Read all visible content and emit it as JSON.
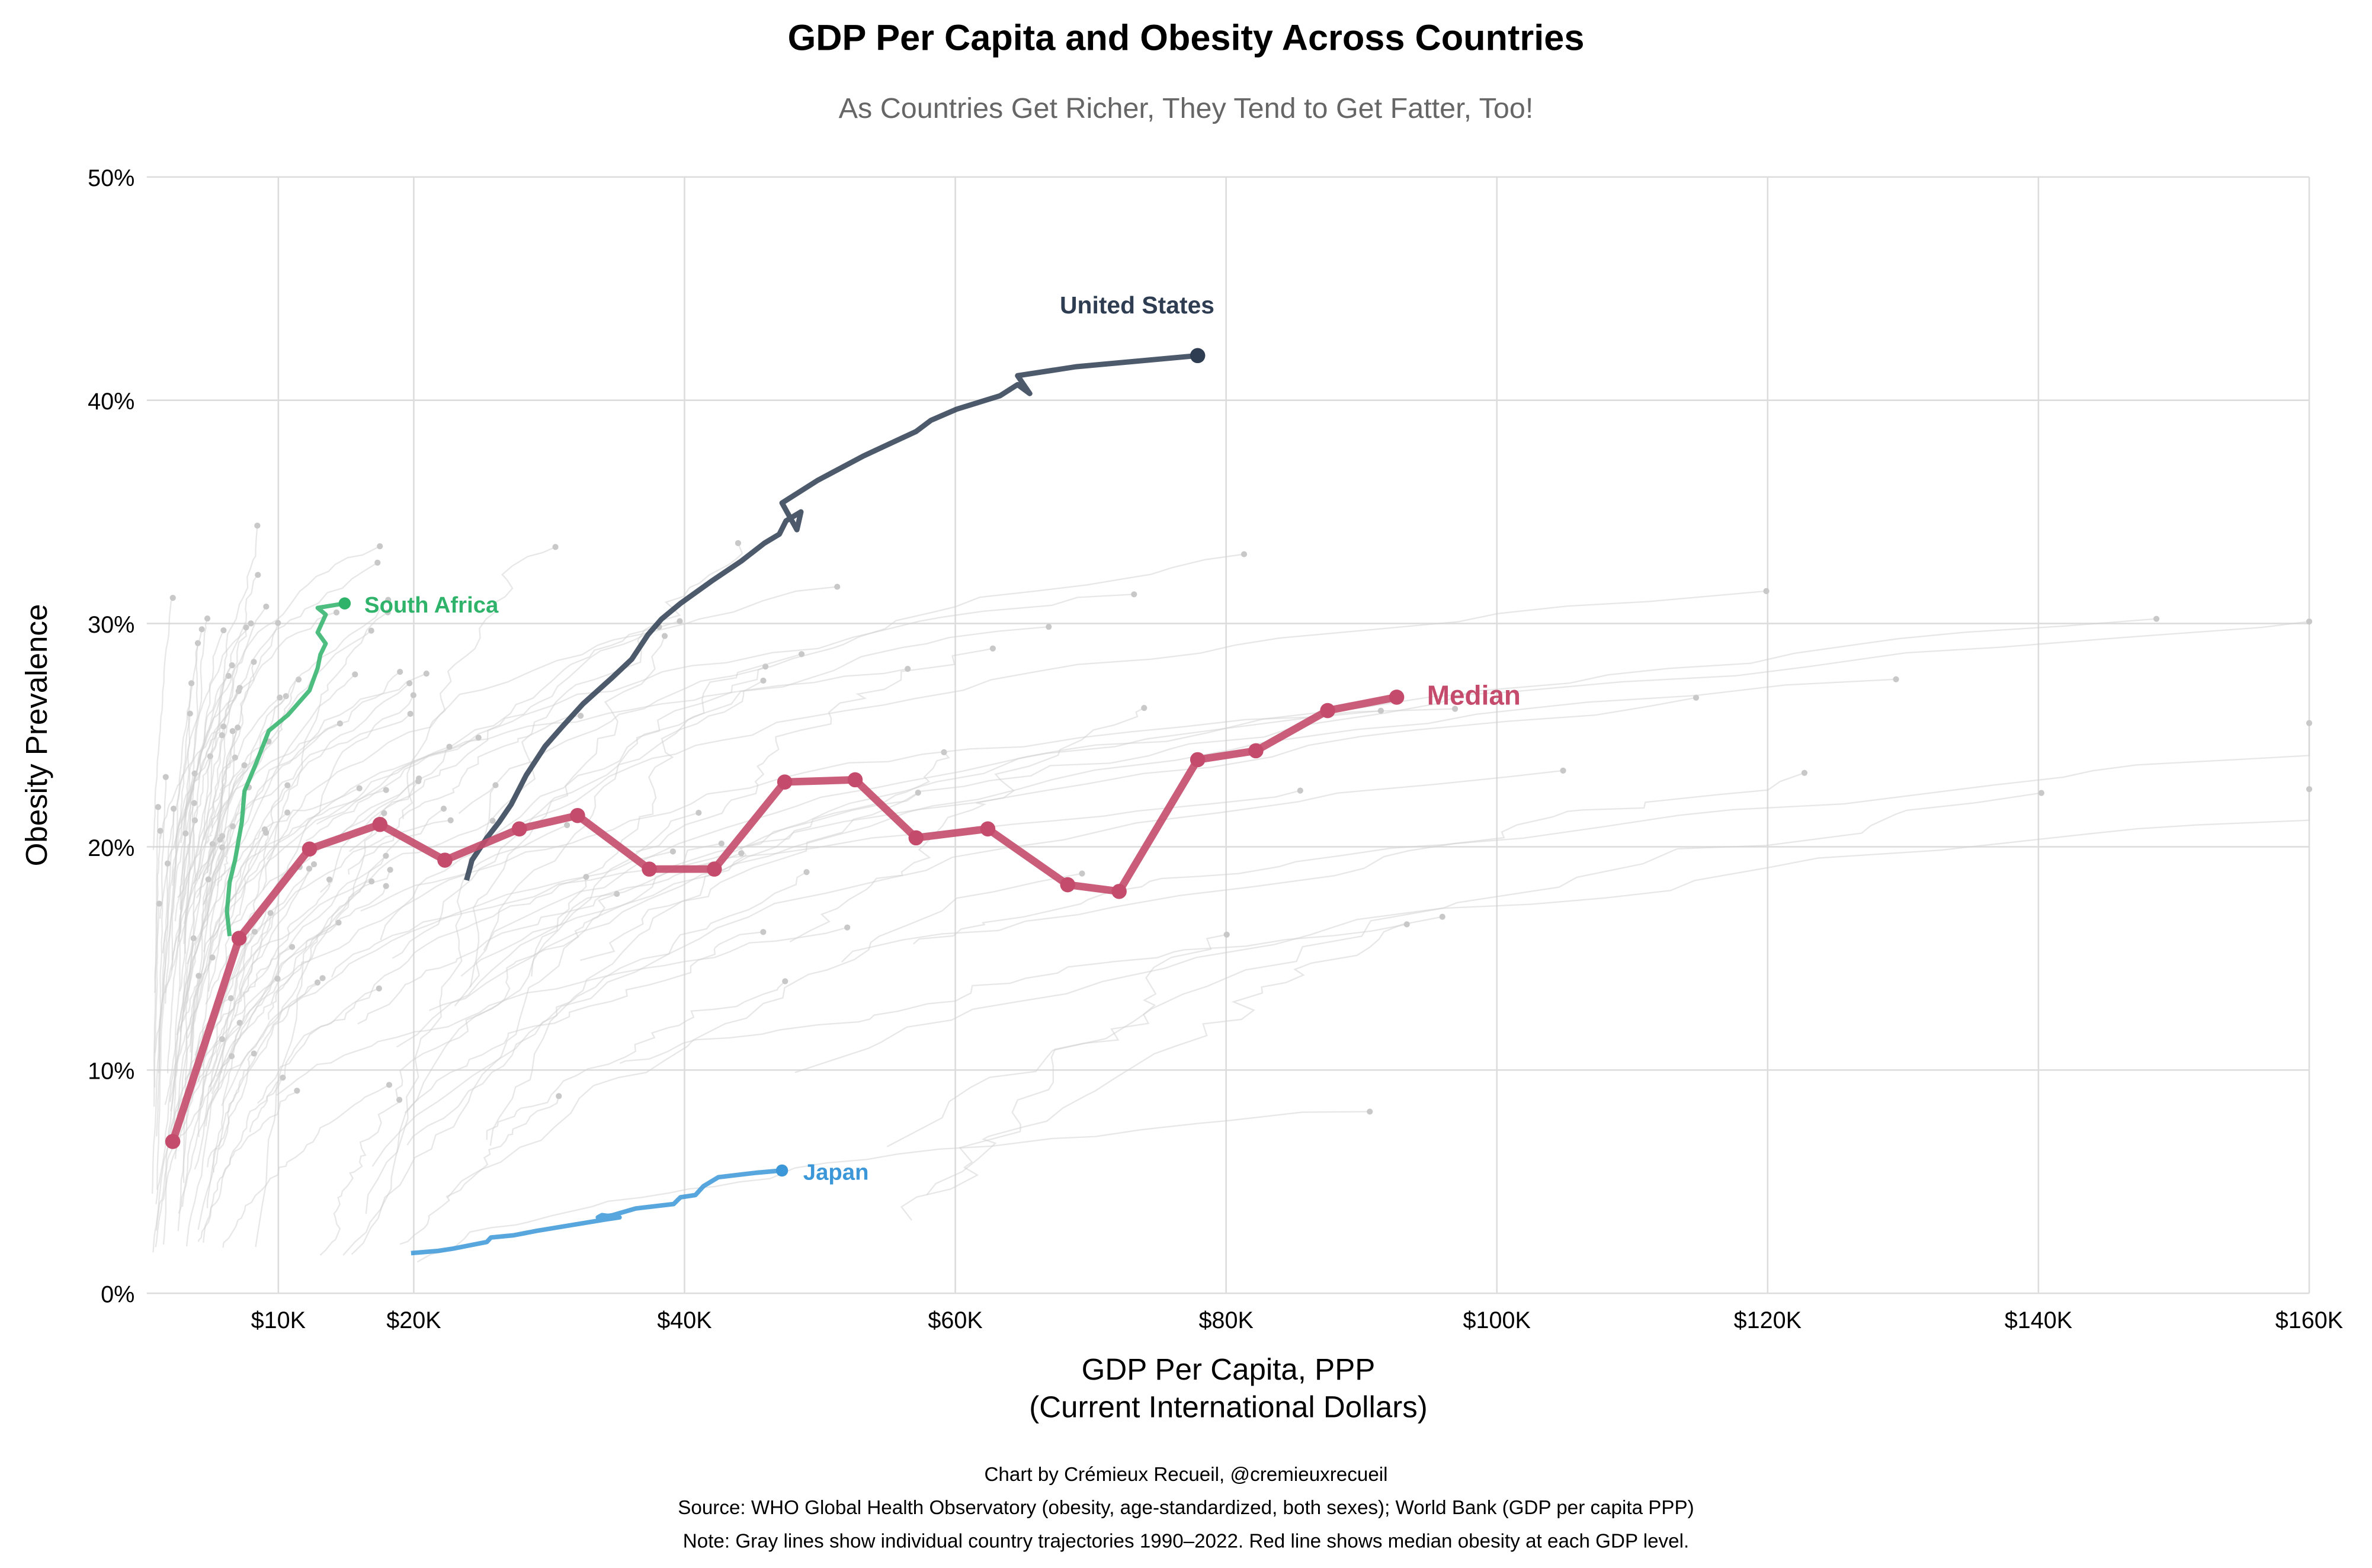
{
  "chart_data": {
    "type": "line",
    "title": "GDP Per Capita and Obesity Across Countries",
    "subtitle": "As Countries Get Richer, They Tend to Get Fatter, Too!",
    "xlabel": "GDP Per Capita, PPP",
    "xlabel2": "(Current International Dollars)",
    "ylabel": "Obesity Prevalence",
    "xlim": [
      0,
      160000
    ],
    "ylim": [
      0,
      50
    ],
    "grid": true,
    "x_ticks": [
      {
        "value": 10000,
        "label": "$10K"
      },
      {
        "value": 20000,
        "label": "$20K"
      },
      {
        "value": 40000,
        "label": "$40K"
      },
      {
        "value": 60000,
        "label": "$60K"
      },
      {
        "value": 80000,
        "label": "$80K"
      },
      {
        "value": 100000,
        "label": "$100K"
      },
      {
        "value": 120000,
        "label": "$120K"
      },
      {
        "value": 140000,
        "label": "$140K"
      },
      {
        "value": 160000,
        "label": "$160K"
      }
    ],
    "y_ticks": [
      {
        "value": 0,
        "label": "0%"
      },
      {
        "value": 10,
        "label": "10%"
      },
      {
        "value": 20,
        "label": "20%"
      },
      {
        "value": 30,
        "label": "30%"
      },
      {
        "value": 40,
        "label": "40%"
      },
      {
        "value": 50,
        "label": "50%"
      }
    ],
    "series": [
      {
        "name": "Median",
        "label": "Median",
        "color": "#c44b6c",
        "x": [
          2200,
          7100,
          12300,
          17500,
          22300,
          27800,
          32100,
          37400,
          42200,
          47400,
          52600,
          57100,
          62400,
          68300,
          72100,
          77900,
          82200,
          87500,
          92600
        ],
        "y": [
          6.8,
          15.9,
          19.9,
          21.0,
          19.4,
          20.8,
          21.4,
          19.0,
          19.0,
          22.9,
          23.0,
          20.4,
          20.8,
          18.3,
          18.0,
          23.9,
          24.3,
          26.1,
          26.7
        ]
      },
      {
        "name": "United States",
        "label": "United States",
        "color": "#2e3d52",
        "x": [
          23900,
          24300,
          25400,
          26300,
          27200,
          28300,
          29700,
          31000,
          32500,
          34700,
          36100,
          37300,
          38300,
          39700,
          42000,
          44200,
          45900,
          47000,
          47500,
          48600,
          48300,
          47200,
          49800,
          53200,
          57100,
          58200,
          60100,
          63300,
          64600,
          65500,
          64600,
          68900,
          77900
        ],
        "y": [
          18.5,
          19.4,
          20.4,
          21.1,
          21.9,
          23.2,
          24.5,
          25.4,
          26.4,
          27.6,
          28.4,
          29.5,
          30.2,
          30.9,
          31.9,
          32.8,
          33.6,
          34.0,
          34.6,
          35.0,
          34.2,
          35.4,
          36.4,
          37.5,
          38.6,
          39.1,
          39.6,
          40.2,
          40.7,
          40.3,
          41.1,
          41.5,
          42.0
        ]
      },
      {
        "name": "Japan",
        "label": "Japan",
        "color": "#3b97d8",
        "x": [
          19800,
          21800,
          22900,
          25400,
          25700,
          27400,
          29100,
          34100,
          35200,
          33900,
          33600,
          34700,
          36400,
          39200,
          39700,
          40800,
          41400,
          42500,
          45300,
          47200
        ],
        "y": [
          1.8,
          1.9,
          2.0,
          2.3,
          2.5,
          2.6,
          2.8,
          3.3,
          3.4,
          3.5,
          3.4,
          3.5,
          3.8,
          4.0,
          4.3,
          4.4,
          4.8,
          5.2,
          5.4,
          5.5
        ]
      },
      {
        "name": "South Africa",
        "label": "South Africa",
        "color": "#2fb36a",
        "x": [
          6400,
          6200,
          6400,
          6800,
          7300,
          7500,
          8400,
          9300,
          10700,
          12300,
          12900,
          13100,
          13500,
          12900,
          13500,
          12900,
          14900
        ],
        "y": [
          16.0,
          17.1,
          18.4,
          19.4,
          21.1,
          22.5,
          23.8,
          25.2,
          25.9,
          27.0,
          28.0,
          28.6,
          29.1,
          29.6,
          30.4,
          30.7,
          30.9
        ]
      }
    ],
    "background_series": "individual country trajectories (gray)"
  },
  "footer": {
    "credit": "Chart by Crémieux Recueil, @cremieuxrecueil",
    "source": "Source: WHO Global Health Observatory (obesity, age-standardized, both sexes); World Bank (GDP per capita PPP)",
    "note": "Note: Gray lines show individual country trajectories 1990–2022. Red line shows median obesity at each GDP level."
  }
}
